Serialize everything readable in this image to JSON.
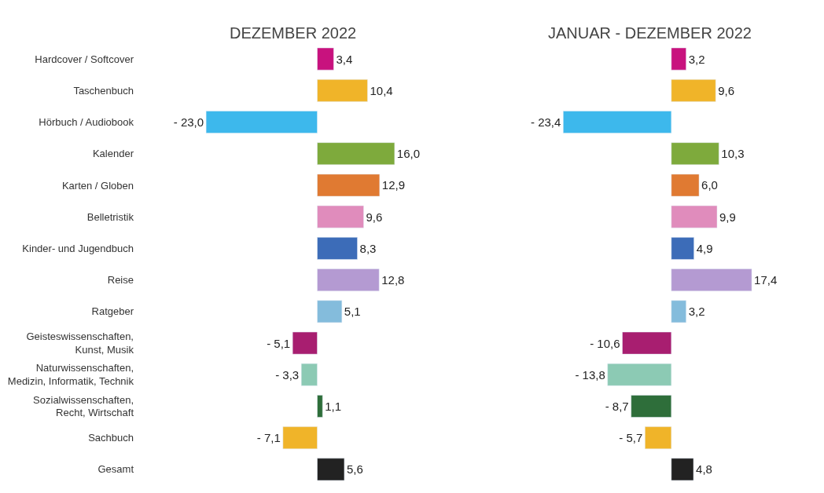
{
  "chart_data": [
    {
      "type": "bar",
      "orientation": "horizontal",
      "title": "DEZEMBER 2022",
      "tick_labels": "y",
      "categories": [
        "Hardcover / Softcover",
        "Taschenbuch",
        "Hörbuch / Audiobook",
        "Kalender",
        "Karten / Globen",
        "Belletristik",
        "Kinder- und Jugendbuch",
        "Reise",
        "Ratgeber",
        "Geisteswissenschaften,\nKunst, Musik",
        "Naturwissenschaften,\nMedizin, Informatik, Technik",
        "Sozialwissenschaften,\nRecht, Wirtschaft",
        "Sachbuch",
        "Gesamt"
      ],
      "values": [
        3.4,
        10.4,
        -23.0,
        16.0,
        12.9,
        9.6,
        8.3,
        12.8,
        5.1,
        -5.1,
        -3.3,
        1.1,
        -7.1,
        5.6
      ],
      "value_labels": [
        "3,4",
        "10,4",
        "- 23,0",
        "16,0",
        "12,9",
        "9,6",
        "8,3",
        "12,8",
        "5,1",
        "- 5,1",
        "- 3,3",
        "1,1",
        "- 7,1",
        "5,6"
      ],
      "colors": [
        "#c8127e",
        "#f0b429",
        "#3db8ec",
        "#7eaa3c",
        "#e07a32",
        "#e08cbc",
        "#3c6cb8",
        "#b49ad2",
        "#84bcdc",
        "#a81e70",
        "#8ccab4",
        "#2e6e3a",
        "#f0b429",
        "#222222"
      ]
    },
    {
      "type": "bar",
      "orientation": "horizontal",
      "title": "JANUAR - DEZEMBER 2022",
      "tick_labels": false,
      "categories": [
        "Hardcover / Softcover",
        "Taschenbuch",
        "Hörbuch / Audiobook",
        "Kalender",
        "Karten / Globen",
        "Belletristik",
        "Kinder- und Jugendbuch",
        "Reise",
        "Ratgeber",
        "Geisteswissenschaften,\nKunst, Musik",
        "Naturwissenschaften,\nMedizin, Informatik, Technik",
        "Sozialwissenschaften,\nRecht, Wirtschaft",
        "Sachbuch",
        "Gesamt"
      ],
      "values": [
        3.2,
        9.6,
        -23.4,
        10.3,
        6.0,
        9.9,
        4.9,
        17.4,
        3.2,
        -10.6,
        -13.8,
        -8.7,
        -5.7,
        4.8
      ],
      "value_labels": [
        "3,2",
        "9,6",
        "- 23,4",
        "10,3",
        "6,0",
        "9,9",
        "4,9",
        "17,4",
        "3,2",
        "- 10,6",
        "- 13,8",
        "- 8,7",
        "- 5,7",
        "4,8"
      ],
      "colors": [
        "#c8127e",
        "#f0b429",
        "#3db8ec",
        "#7eaa3c",
        "#e07a32",
        "#e08cbc",
        "#3c6cb8",
        "#b49ad2",
        "#84bcdc",
        "#a81e70",
        "#8ccab4",
        "#2e6e3a",
        "#f0b429",
        "#222222"
      ]
    }
  ]
}
